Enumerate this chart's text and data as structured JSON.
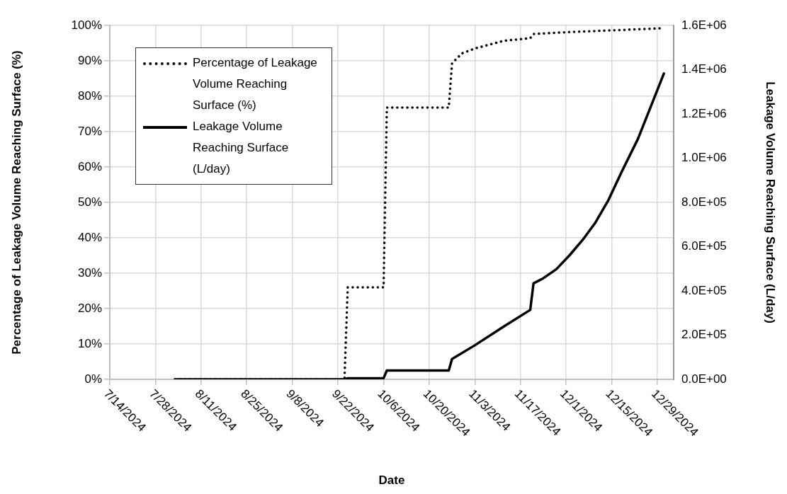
{
  "chart_data": {
    "type": "line",
    "xlabel": "Date",
    "ylabel": "Percentage of Leakage Volume Reaching Surface (%)",
    "y2label": "Leakage Volume Reaching Surface (L/day)",
    "xlim": [
      "2024-07-14",
      "2025-01-03"
    ],
    "xticks": [
      {
        "value": "2024-07-14",
        "label": "7/14/2024"
      },
      {
        "value": "2024-07-28",
        "label": "7/28/2024"
      },
      {
        "value": "2024-08-11",
        "label": "8/11/2024"
      },
      {
        "value": "2024-08-25",
        "label": "8/25/2024"
      },
      {
        "value": "2024-09-08",
        "label": "9/8/2024"
      },
      {
        "value": "2024-09-22",
        "label": "9/22/2024"
      },
      {
        "value": "2024-10-06",
        "label": "10/6/2024"
      },
      {
        "value": "2024-10-20",
        "label": "10/20/2024"
      },
      {
        "value": "2024-11-03",
        "label": "11/3/2024"
      },
      {
        "value": "2024-11-17",
        "label": "11/17/2024"
      },
      {
        "value": "2024-12-01",
        "label": "12/1/2024"
      },
      {
        "value": "2024-12-15",
        "label": "12/15/2024"
      },
      {
        "value": "2024-12-29",
        "label": "12/29/2024"
      }
    ],
    "ylim": [
      0,
      100
    ],
    "yticks": [
      {
        "value": 0,
        "label": "0%"
      },
      {
        "value": 10,
        "label": "10%"
      },
      {
        "value": 20,
        "label": "20%"
      },
      {
        "value": 30,
        "label": "30%"
      },
      {
        "value": 40,
        "label": "40%"
      },
      {
        "value": 50,
        "label": "50%"
      },
      {
        "value": 60,
        "label": "60%"
      },
      {
        "value": 70,
        "label": "70%"
      },
      {
        "value": 80,
        "label": "80%"
      },
      {
        "value": 90,
        "label": "90%"
      },
      {
        "value": 100,
        "label": "100%"
      }
    ],
    "y2lim": [
      0,
      1600000
    ],
    "y2ticks": [
      {
        "value": 0,
        "label": "0.0E+00"
      },
      {
        "value": 200000,
        "label": "2.0E+05"
      },
      {
        "value": 400000,
        "label": "4.0E+05"
      },
      {
        "value": 600000,
        "label": "6.0E+05"
      },
      {
        "value": 800000,
        "label": "8.0E+05"
      },
      {
        "value": 1000000,
        "label": "1.0E+06"
      },
      {
        "value": 1200000,
        "label": "1.2E+06"
      },
      {
        "value": 1400000,
        "label": "1.4E+06"
      },
      {
        "value": 1600000,
        "label": "1.6E+06"
      }
    ],
    "grid": true,
    "legend": "top left",
    "series": [
      {
        "name": "Percentage of Leakage Volume Reaching Surface (%)",
        "color": "#000000",
        "line_style": "dotted",
        "axis": "y",
        "x": [
          "2024-08-03",
          "2024-09-24",
          "2024-09-25",
          "2024-10-06",
          "2024-10-07",
          "2024-10-26",
          "2024-10-27",
          "2024-10-30",
          "2024-11-03",
          "2024-11-12",
          "2024-11-20",
          "2024-11-21",
          "2024-12-01",
          "2024-12-17",
          "2024-12-30"
        ],
        "values": [
          0,
          0,
          26,
          26,
          76.8,
          76.8,
          89.3,
          92.1,
          93.5,
          95.7,
          96.4,
          97.6,
          98.1,
          98.7,
          99.2
        ]
      },
      {
        "name": "Leakage Volume Reaching Surface (L/day)",
        "color": "#000000",
        "line_style": "solid",
        "axis": "y2",
        "x": [
          "2024-08-03",
          "2024-09-24",
          "2024-09-25",
          "2024-10-06",
          "2024-10-07",
          "2024-10-26",
          "2024-10-27",
          "2024-11-03",
          "2024-11-12",
          "2024-11-20",
          "2024-11-21",
          "2024-11-24",
          "2024-11-28",
          "2024-12-02",
          "2024-12-06",
          "2024-12-10",
          "2024-12-14",
          "2024-12-18",
          "2024-12-23",
          "2024-12-27",
          "2024-12-31"
        ],
        "values": [
          0,
          0,
          5000,
          5000,
          40000,
          40000,
          92000,
          154000,
          240000,
          314000,
          434000,
          457000,
          498000,
          560000,
          629000,
          709000,
          811000,
          937000,
          1086000,
          1234000,
          1383000
        ]
      }
    ]
  }
}
